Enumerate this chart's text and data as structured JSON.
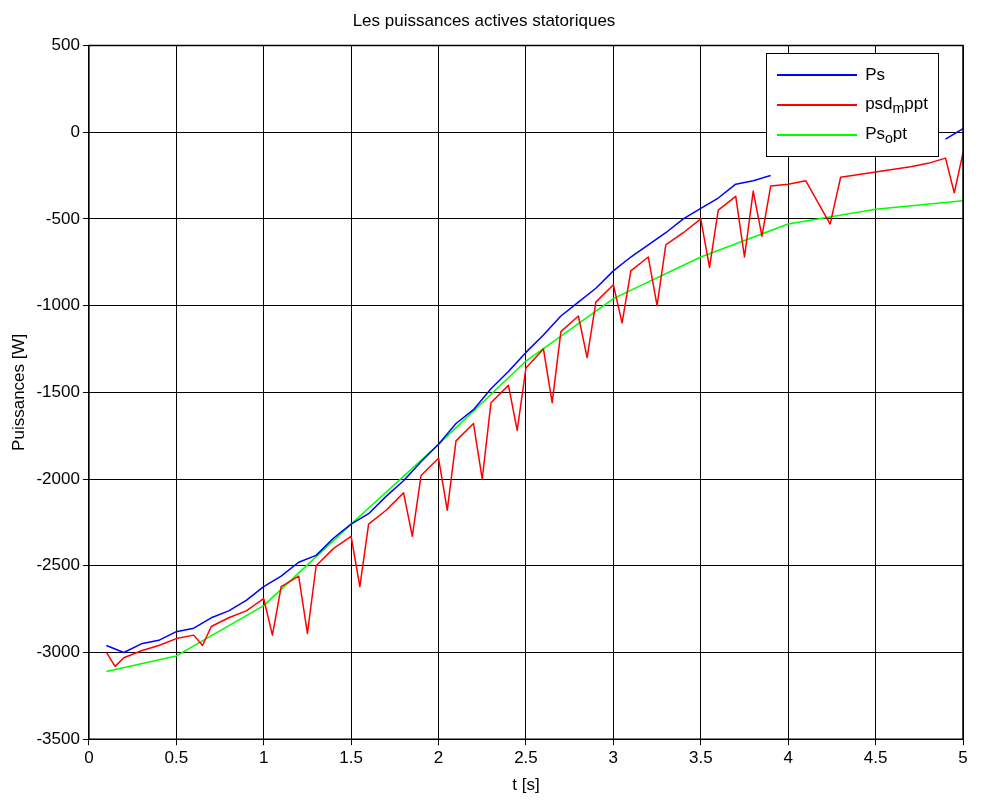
{
  "chart_data": {
    "type": "line",
    "title": "Les puissances actives statoriques",
    "xlabel": "t [s]",
    "ylabel": "Puissances [W]",
    "xlim": [
      0,
      5
    ],
    "xticks": [
      0,
      0.5,
      1,
      1.5,
      2,
      2.5,
      3,
      3.5,
      4,
      4.5,
      5
    ],
    "ylim": [
      -3500,
      500
    ],
    "yticks": [
      -3500,
      -3000,
      -2500,
      -2000,
      -1500,
      -1000,
      -500,
      0,
      500
    ],
    "grid": true,
    "legend": "top right",
    "marker": "none",
    "line_style": "solid",
    "series": [
      {
        "name": "Ps",
        "color": "#0000ff",
        "x": [
          0.1,
          0.2,
          0.3,
          0.4,
          0.5,
          0.6,
          0.7,
          0.8,
          0.9,
          1.0,
          1.1,
          1.2,
          1.3,
          1.4,
          1.5,
          1.6,
          1.7,
          1.8,
          1.9,
          2.0,
          2.1,
          2.2,
          2.3,
          2.4,
          2.5,
          2.6,
          2.7,
          2.8,
          2.9,
          3.0,
          3.1,
          3.2,
          3.3,
          3.4,
          3.5,
          3.6,
          3.7,
          3.8,
          3.9,
          4.0,
          4.1,
          4.2,
          4.3,
          4.4,
          4.5,
          4.6,
          4.7,
          4.8,
          4.9,
          5.0
        ],
        "values": [
          -2960,
          -3000,
          -2950,
          -2930,
          -2880,
          -2860,
          -2800,
          -2760,
          -2700,
          -2620,
          -2560,
          -2480,
          -2440,
          -2340,
          -2260,
          -2200,
          -2100,
          -2010,
          -1900,
          -1800,
          -1680,
          -1600,
          -1480,
          -1380,
          -1270,
          -1170,
          -1060,
          -980,
          -900,
          -800,
          -720,
          -650,
          -580,
          -500,
          -440,
          -380,
          -300,
          -280,
          -250,
          null,
          null,
          null,
          null,
          null,
          null,
          null,
          null,
          null,
          -40,
          20
        ]
      },
      {
        "name": "psd$_{m}$ppt",
        "color": "#ff0000",
        "x": [
          0.1,
          0.15,
          0.2,
          0.3,
          0.4,
          0.5,
          0.6,
          0.65,
          0.7,
          0.8,
          0.9,
          1.0,
          1.05,
          1.1,
          1.2,
          1.25,
          1.3,
          1.4,
          1.5,
          1.55,
          1.6,
          1.7,
          1.8,
          1.85,
          1.9,
          2.0,
          2.05,
          2.1,
          2.2,
          2.25,
          2.3,
          2.4,
          2.45,
          2.5,
          2.6,
          2.65,
          2.7,
          2.8,
          2.85,
          2.9,
          3.0,
          3.05,
          3.1,
          3.2,
          3.25,
          3.3,
          3.4,
          3.5,
          3.55,
          3.6,
          3.7,
          3.75,
          3.8,
          3.85,
          3.9,
          4.0,
          4.1,
          4.24,
          4.3,
          4.5,
          4.7,
          4.8,
          4.9,
          4.95,
          5.0
        ],
        "values": [
          -3000,
          -3080,
          -3030,
          -2990,
          -2960,
          -2920,
          -2900,
          -2960,
          -2850,
          -2800,
          -2760,
          -2690,
          -2900,
          -2620,
          -2560,
          -2890,
          -2500,
          -2400,
          -2330,
          -2620,
          -2260,
          -2180,
          -2080,
          -2330,
          -1980,
          -1880,
          -2180,
          -1780,
          -1680,
          -2000,
          -1560,
          -1460,
          -1720,
          -1360,
          -1250,
          -1560,
          -1150,
          -1060,
          -1300,
          -980,
          -880,
          -1100,
          -800,
          -720,
          -1000,
          -650,
          -580,
          -500,
          -780,
          -450,
          -370,
          -720,
          -340,
          -600,
          -310,
          -300,
          -280,
          -530,
          -260,
          -230,
          -200,
          -180,
          -150,
          -350,
          -120
        ]
      },
      {
        "name": "Ps$_{o}$pt",
        "color": "#00ff00",
        "x": [
          0.1,
          0.5,
          1.0,
          1.5,
          2.0,
          2.5,
          3.0,
          3.5,
          4.0,
          4.5,
          5.0
        ],
        "values": [
          -3110,
          -3020,
          -2730,
          -2260,
          -1800,
          -1320,
          -960,
          -720,
          -530,
          -445,
          -395
        ]
      }
    ]
  }
}
